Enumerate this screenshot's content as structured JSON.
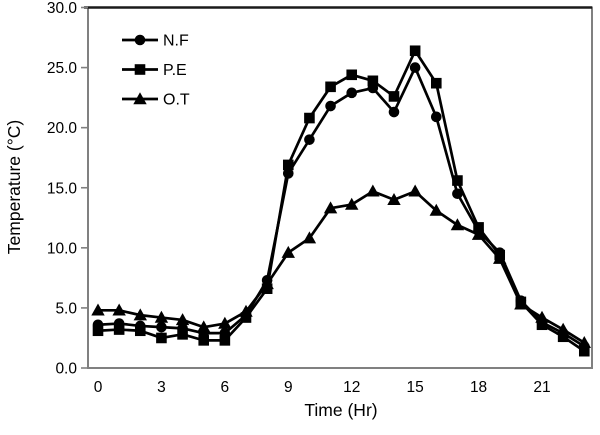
{
  "chart_data": {
    "type": "line",
    "title": "",
    "xlabel": "Time (Hr)",
    "ylabel": "Temperature (°C)",
    "x": [
      0,
      1,
      2,
      3,
      4,
      5,
      6,
      7,
      8,
      9,
      10,
      11,
      12,
      13,
      14,
      15,
      16,
      17,
      18,
      19,
      20,
      21,
      22,
      23
    ],
    "series": [
      {
        "name": "N.F",
        "marker": "circle",
        "values": [
          3.6,
          3.7,
          3.5,
          3.4,
          3.3,
          2.9,
          2.9,
          4.4,
          7.3,
          16.2,
          19.0,
          21.8,
          22.9,
          23.3,
          21.3,
          25.0,
          20.9,
          14.5,
          11.4,
          9.6,
          5.6,
          3.8,
          2.9,
          1.8
        ]
      },
      {
        "name": "P.E",
        "marker": "square",
        "values": [
          3.1,
          3.2,
          3.1,
          2.5,
          2.8,
          2.3,
          2.3,
          4.2,
          6.6,
          16.9,
          20.8,
          23.4,
          24.4,
          23.9,
          22.6,
          26.4,
          23.7,
          15.6,
          11.7,
          9.4,
          5.5,
          3.6,
          2.6,
          1.4
        ]
      },
      {
        "name": "O.T",
        "marker": "triangle",
        "values": [
          4.8,
          4.8,
          4.4,
          4.2,
          4.0,
          3.4,
          3.7,
          4.7,
          7.0,
          9.6,
          10.8,
          13.3,
          13.6,
          14.7,
          14.0,
          14.7,
          13.1,
          11.9,
          11.1,
          9.1,
          5.3,
          4.2,
          3.2,
          2.1
        ]
      }
    ],
    "ylim": [
      0.0,
      30.0
    ],
    "y_ticks": [
      0,
      5,
      10,
      15,
      20,
      25,
      30
    ],
    "y_tick_labels": [
      "0.0",
      "5.0",
      "10.0",
      "15.0",
      "20.0",
      "25.0",
      "30.0"
    ],
    "x_ticks": [
      0,
      3,
      6,
      9,
      12,
      15,
      18,
      21
    ],
    "x_tick_labels": [
      "0",
      "3",
      "6",
      "9",
      "12",
      "15",
      "18",
      "21"
    ],
    "grid": false,
    "legend_position": "inside-top-left",
    "colors": {
      "series_color": "#000000",
      "axis_color": "#808080",
      "top_border_color": "#1a1a1a",
      "text_color": "#000000",
      "background": "#ffffff"
    }
  }
}
